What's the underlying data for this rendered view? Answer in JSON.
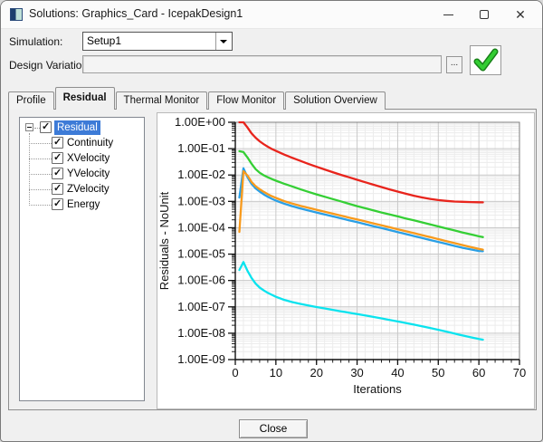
{
  "window": {
    "title": "Solutions: Graphics_Card - IcepakDesign1",
    "controls": {
      "minimize_glyph": "",
      "maximize_glyph": "",
      "close_glyph": "✕"
    }
  },
  "simulation": {
    "label": "Simulation:",
    "value": "Setup1"
  },
  "design_variation": {
    "label": "Design Variation:",
    "value": "",
    "browse_label": "...",
    "apply_icon": "green-checkmark-icon",
    "check_color": "#2db82d"
  },
  "tabs": [
    {
      "label": "Profile",
      "active": false
    },
    {
      "label": "Residual",
      "active": true
    },
    {
      "label": "Thermal Monitor",
      "active": false
    },
    {
      "label": "Flow Monitor",
      "active": false
    },
    {
      "label": "Solution Overview",
      "active": false
    }
  ],
  "tree": {
    "items": [
      {
        "label": "Residual",
        "checked": true,
        "selected": true,
        "expanded": true,
        "level": 0
      },
      {
        "label": "Continuity",
        "checked": true,
        "level": 1
      },
      {
        "label": "XVelocity",
        "checked": true,
        "level": 1
      },
      {
        "label": "YVelocity",
        "checked": true,
        "level": 1
      },
      {
        "label": "ZVelocity",
        "checked": true,
        "level": 1
      },
      {
        "label": "Energy",
        "checked": true,
        "level": 1
      }
    ]
  },
  "footer": {
    "close_label": "Close"
  },
  "chart_data": {
    "type": "line",
    "title": "",
    "xlabel": "Iterations",
    "ylabel": "Residuals - NoUnit",
    "xlim": [
      0,
      70
    ],
    "x_ticks": [
      0,
      10,
      20,
      30,
      40,
      50,
      60,
      70
    ],
    "x_minor_step": 2,
    "y_scale": "log",
    "y_decades": 9,
    "ylim": [
      1e-09,
      1.0
    ],
    "y_tick_labels": [
      "1.00E+00",
      "1.00E-01",
      "1.00E-02",
      "1.00E-03",
      "1.00E-04",
      "1.00E-05",
      "1.00E-06",
      "1.00E-07",
      "1.00E-08",
      "1.00E-09"
    ],
    "grid": true,
    "legend": "none",
    "series": [
      {
        "name": "Continuity",
        "color": "#e8241c",
        "points": [
          [
            1,
            1.0
          ],
          [
            2,
            1.0
          ],
          [
            3,
            0.63
          ],
          [
            4,
            0.38
          ],
          [
            5,
            0.26
          ],
          [
            6,
            0.19
          ],
          [
            7,
            0.148
          ],
          [
            8,
            0.118
          ],
          [
            9,
            0.097
          ],
          [
            10,
            0.082
          ],
          [
            12,
            0.06
          ],
          [
            14,
            0.045
          ],
          [
            16,
            0.0345
          ],
          [
            18,
            0.0265
          ],
          [
            20,
            0.0205
          ],
          [
            22,
            0.0162
          ],
          [
            24,
            0.0128
          ],
          [
            26,
            0.0102
          ],
          [
            28,
            0.0082
          ],
          [
            30,
            0.0066
          ],
          [
            32,
            0.0053
          ],
          [
            34,
            0.0043
          ],
          [
            36,
            0.0035
          ],
          [
            38,
            0.00285
          ],
          [
            40,
            0.00235
          ],
          [
            42,
            0.00195
          ],
          [
            44,
            0.00164
          ],
          [
            46,
            0.00141
          ],
          [
            48,
            0.00124
          ],
          [
            50,
            0.00112
          ],
          [
            52,
            0.00104
          ],
          [
            54,
            0.00099
          ],
          [
            56,
            0.00096
          ],
          [
            58,
            0.00094
          ],
          [
            60,
            0.00093
          ],
          [
            61,
            0.00092
          ]
        ]
      },
      {
        "name": "XVelocity",
        "color": "#35cf35",
        "points": [
          [
            1,
            0.08
          ],
          [
            2,
            0.074
          ],
          [
            3,
            0.046
          ],
          [
            4,
            0.027
          ],
          [
            5,
            0.0168
          ],
          [
            6,
            0.0122
          ],
          [
            7,
            0.0098
          ],
          [
            8,
            0.0082
          ],
          [
            9,
            0.007
          ],
          [
            10,
            0.0061
          ],
          [
            12,
            0.0047
          ],
          [
            14,
            0.0037
          ],
          [
            16,
            0.0029
          ],
          [
            18,
            0.0023
          ],
          [
            20,
            0.00185
          ],
          [
            22,
            0.0015
          ],
          [
            24,
            0.00122
          ],
          [
            26,
            0.001
          ],
          [
            28,
            0.00081
          ],
          [
            30,
            0.00066
          ],
          [
            32,
            0.00055
          ],
          [
            34,
            0.00046
          ],
          [
            36,
            0.00038
          ],
          [
            38,
            0.00032
          ],
          [
            40,
            0.00027
          ],
          [
            42,
            0.000225
          ],
          [
            44,
            0.00019
          ],
          [
            46,
            0.00016
          ],
          [
            48,
            0.000134
          ],
          [
            50,
            0.000112
          ],
          [
            52,
            9.4e-05
          ],
          [
            54,
            7.9e-05
          ],
          [
            56,
            6.6e-05
          ],
          [
            58,
            5.6e-05
          ],
          [
            60,
            4.75e-05
          ],
          [
            61,
            4.4e-05
          ]
        ]
      },
      {
        "name": "YVelocity",
        "color": "#2a9fe5",
        "points": [
          [
            1,
            0.0014
          ],
          [
            2,
            0.018
          ],
          [
            3,
            0.0082
          ],
          [
            4,
            0.0046
          ],
          [
            5,
            0.0031
          ],
          [
            6,
            0.00235
          ],
          [
            7,
            0.00185
          ],
          [
            8,
            0.0015
          ],
          [
            9,
            0.00125
          ],
          [
            10,
            0.00107
          ],
          [
            12,
            0.00082
          ],
          [
            14,
            0.00066
          ],
          [
            16,
            0.00054
          ],
          [
            18,
            0.00045
          ],
          [
            20,
            0.00038
          ],
          [
            22,
            0.00032
          ],
          [
            24,
            0.00027
          ],
          [
            26,
            0.000228
          ],
          [
            28,
            0.000192
          ],
          [
            30,
            0.000162
          ],
          [
            32,
            0.000137
          ],
          [
            34,
            0.000115
          ],
          [
            36,
            9.7e-05
          ],
          [
            38,
            8.15e-05
          ],
          [
            40,
            6.85e-05
          ],
          [
            42,
            5.75e-05
          ],
          [
            44,
            4.85e-05
          ],
          [
            46,
            4.08e-05
          ],
          [
            48,
            3.43e-05
          ],
          [
            50,
            2.89e-05
          ],
          [
            52,
            2.43e-05
          ],
          [
            54,
            2.05e-05
          ],
          [
            56,
            1.74e-05
          ],
          [
            58,
            1.5e-05
          ],
          [
            60,
            1.31e-05
          ],
          [
            61,
            1.28e-05
          ]
        ]
      },
      {
        "name": "ZVelocity",
        "color": "#f89a1c",
        "points": [
          [
            1,
            7e-05
          ],
          [
            2,
            0.014
          ],
          [
            3,
            0.0095
          ],
          [
            4,
            0.0055
          ],
          [
            5,
            0.0038
          ],
          [
            6,
            0.0029
          ],
          [
            7,
            0.0023
          ],
          [
            8,
            0.00188
          ],
          [
            9,
            0.00158
          ],
          [
            10,
            0.00135
          ],
          [
            12,
            0.00103
          ],
          [
            14,
            0.00083
          ],
          [
            16,
            0.00068
          ],
          [
            18,
            0.00057
          ],
          [
            20,
            0.00048
          ],
          [
            22,
            0.000405
          ],
          [
            24,
            0.000342
          ],
          [
            26,
            0.000289
          ],
          [
            28,
            0.000244
          ],
          [
            30,
            0.000206
          ],
          [
            32,
            0.000174
          ],
          [
            34,
            0.000147
          ],
          [
            36,
            0.000124
          ],
          [
            38,
            0.000104
          ],
          [
            40,
            8.8e-05
          ],
          [
            42,
            7.4e-05
          ],
          [
            44,
            6.23e-05
          ],
          [
            46,
            5.24e-05
          ],
          [
            48,
            4.4e-05
          ],
          [
            50,
            3.7e-05
          ],
          [
            52,
            3.11e-05
          ],
          [
            54,
            2.61e-05
          ],
          [
            56,
            2.2e-05
          ],
          [
            58,
            1.86e-05
          ],
          [
            60,
            1.58e-05
          ],
          [
            61,
            1.48e-05
          ]
        ]
      },
      {
        "name": "Energy",
        "color": "#0ae3ee",
        "points": [
          [
            1,
            2.5e-06
          ],
          [
            2,
            5e-06
          ],
          [
            3,
            2.3e-06
          ],
          [
            4,
            1.25e-06
          ],
          [
            5,
            7.6e-07
          ],
          [
            6,
            5.4e-07
          ],
          [
            7,
            4.2e-07
          ],
          [
            8,
            3.4e-07
          ],
          [
            9,
            2.85e-07
          ],
          [
            10,
            2.4e-07
          ],
          [
            12,
            1.85e-07
          ],
          [
            14,
            1.52e-07
          ],
          [
            16,
            1.3e-07
          ],
          [
            18,
            1.12e-07
          ],
          [
            20,
            9.8e-08
          ],
          [
            22,
            8.7e-08
          ],
          [
            24,
            7.7e-08
          ],
          [
            26,
            6.8e-08
          ],
          [
            28,
            6e-08
          ],
          [
            30,
            5.3e-08
          ],
          [
            32,
            4.7e-08
          ],
          [
            34,
            4.15e-08
          ],
          [
            36,
            3.65e-08
          ],
          [
            38,
            3.2e-08
          ],
          [
            40,
            2.8e-08
          ],
          [
            42,
            2.45e-08
          ],
          [
            44,
            2.12e-08
          ],
          [
            46,
            1.84e-08
          ],
          [
            48,
            1.58e-08
          ],
          [
            50,
            1.35e-08
          ],
          [
            52,
            1.15e-08
          ],
          [
            54,
            9.7e-09
          ],
          [
            56,
            8.2e-09
          ],
          [
            58,
            7e-09
          ],
          [
            60,
            6e-09
          ],
          [
            61,
            5.7e-09
          ]
        ]
      }
    ]
  }
}
